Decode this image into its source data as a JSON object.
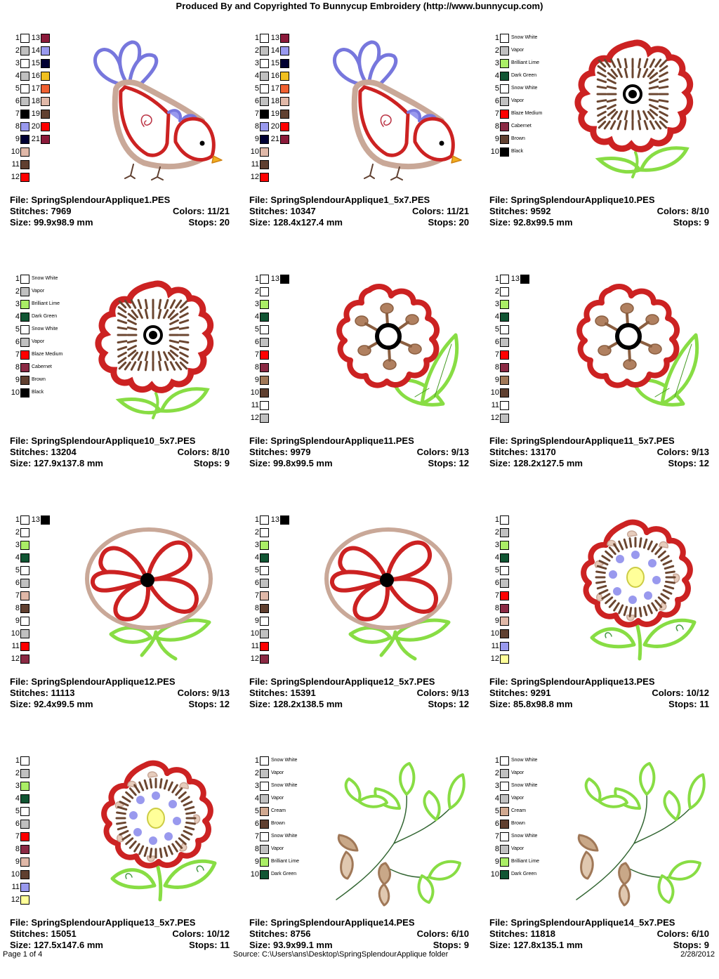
{
  "header": {
    "title": "Produced By and Copyrighted To Bunnycup Embroidery (http://www.bunnycup.com)"
  },
  "labels": {
    "file": "File:",
    "stitches": "Stitches:",
    "colors": "Colors:",
    "size": "Size:",
    "stops": "Stops:"
  },
  "designs": [
    {
      "file": "SpringSplendourApplique1.PES",
      "stitches": "7969",
      "colors": "11/21",
      "size": "99.9x98.9 mm",
      "stops": "20",
      "art": "bird",
      "swatches": [
        {
          "n": "1",
          "c": "#ffffff"
        },
        {
          "n": "2",
          "c": "#c0c0c0"
        },
        {
          "n": "3",
          "c": "#ffffff"
        },
        {
          "n": "4",
          "c": "#c0c0c0"
        },
        {
          "n": "5",
          "c": "#ffffff"
        },
        {
          "n": "6",
          "c": "#c0c0c0"
        },
        {
          "n": "7",
          "c": "#000000"
        },
        {
          "n": "8",
          "c": "#9999ee"
        },
        {
          "n": "9",
          "c": "#000033"
        },
        {
          "n": "10",
          "c": "#e0b8a8"
        },
        {
          "n": "11",
          "c": "#604030"
        },
        {
          "n": "12",
          "c": "#ff0000"
        },
        {
          "n": "13",
          "c": "#8b1a3a"
        },
        {
          "n": "14",
          "c": "#9999ee"
        },
        {
          "n": "15",
          "c": "#000033"
        },
        {
          "n": "16",
          "c": "#f0c020"
        },
        {
          "n": "17",
          "c": "#f06030"
        },
        {
          "n": "18",
          "c": "#e0b8a8"
        },
        {
          "n": "19",
          "c": "#604030"
        },
        {
          "n": "20",
          "c": "#ff0000"
        },
        {
          "n": "21",
          "c": "#8b1a3a"
        }
      ]
    },
    {
      "file": "SpringSplendourApplique1_5x7.PES",
      "stitches": "10347",
      "colors": "11/21",
      "size": "128.4x127.4 mm",
      "stops": "20",
      "art": "bird",
      "swatches": [
        {
          "n": "1",
          "c": "#ffffff"
        },
        {
          "n": "2",
          "c": "#c0c0c0"
        },
        {
          "n": "3",
          "c": "#ffffff"
        },
        {
          "n": "4",
          "c": "#c0c0c0"
        },
        {
          "n": "5",
          "c": "#ffffff"
        },
        {
          "n": "6",
          "c": "#c0c0c0"
        },
        {
          "n": "7",
          "c": "#000000"
        },
        {
          "n": "8",
          "c": "#9999ee"
        },
        {
          "n": "9",
          "c": "#000033"
        },
        {
          "n": "10",
          "c": "#e0b8a8"
        },
        {
          "n": "11",
          "c": "#604030"
        },
        {
          "n": "12",
          "c": "#ff0000"
        },
        {
          "n": "13",
          "c": "#8b1a3a"
        },
        {
          "n": "14",
          "c": "#9999ee"
        },
        {
          "n": "15",
          "c": "#000033"
        },
        {
          "n": "16",
          "c": "#f0c020"
        },
        {
          "n": "17",
          "c": "#f06030"
        },
        {
          "n": "18",
          "c": "#e0b8a8"
        },
        {
          "n": "19",
          "c": "#604030"
        },
        {
          "n": "20",
          "c": "#ff0000"
        },
        {
          "n": "21",
          "c": "#8b1a3a"
        }
      ]
    },
    {
      "file": "SpringSplendourApplique10.PES",
      "stitches": "9592",
      "colors": "8/10",
      "size": "92.8x99.5 mm",
      "stops": "9",
      "art": "squareflower",
      "swatches": [
        {
          "n": "1",
          "c": "#ffffff",
          "name": "Snow White"
        },
        {
          "n": "2",
          "c": "#c0c0c0",
          "name": "Vapor"
        },
        {
          "n": "3",
          "c": "#aaee66",
          "name": "Brilliant Lime"
        },
        {
          "n": "4",
          "c": "#115533",
          "name": "Dark Green"
        },
        {
          "n": "5",
          "c": "#ffffff",
          "name": "Snow White"
        },
        {
          "n": "6",
          "c": "#c0c0c0",
          "name": "Vapor"
        },
        {
          "n": "7",
          "c": "#ff0000",
          "name": "Blaze Medium"
        },
        {
          "n": "8",
          "c": "#8b2a44",
          "name": "Cabernet"
        },
        {
          "n": "9",
          "c": "#604030",
          "name": "Brown"
        },
        {
          "n": "10",
          "c": "#000000",
          "name": "Black"
        }
      ]
    },
    {
      "file": "SpringSplendourApplique10_5x7.PES",
      "stitches": "13204",
      "colors": "8/10",
      "size": "127.9x137.8 mm",
      "stops": "9",
      "art": "squareflower",
      "swatches": [
        {
          "n": "1",
          "c": "#ffffff",
          "name": "Snow White"
        },
        {
          "n": "2",
          "c": "#c0c0c0",
          "name": "Vapor"
        },
        {
          "n": "3",
          "c": "#aaee66",
          "name": "Brilliant Lime"
        },
        {
          "n": "4",
          "c": "#115533",
          "name": "Dark Green"
        },
        {
          "n": "5",
          "c": "#ffffff",
          "name": "Snow White"
        },
        {
          "n": "6",
          "c": "#c0c0c0",
          "name": "Vapor"
        },
        {
          "n": "7",
          "c": "#ff0000",
          "name": "Blaze Medium"
        },
        {
          "n": "8",
          "c": "#8b2a44",
          "name": "Cabernet"
        },
        {
          "n": "9",
          "c": "#604030",
          "name": "Brown"
        },
        {
          "n": "10",
          "c": "#000000",
          "name": "Black"
        }
      ]
    },
    {
      "file": "SpringSplendourApplique11.PES",
      "stitches": "9979",
      "colors": "9/13",
      "size": "99.8x99.5 mm",
      "stops": "12",
      "art": "ringflower",
      "swatches": [
        {
          "n": "1",
          "c": "#ffffff"
        },
        {
          "n": "2",
          "c": "#ffffff"
        },
        {
          "n": "3",
          "c": "#aaee66"
        },
        {
          "n": "4",
          "c": "#115533"
        },
        {
          "n": "5",
          "c": "#ffffff"
        },
        {
          "n": "6",
          "c": "#c0c0c0"
        },
        {
          "n": "7",
          "c": "#ff0000"
        },
        {
          "n": "8",
          "c": "#8b2a44"
        },
        {
          "n": "9",
          "c": "#a07858"
        },
        {
          "n": "10",
          "c": "#604030"
        },
        {
          "n": "11",
          "c": "#ffffff"
        },
        {
          "n": "12",
          "c": "#c0c0c0"
        },
        {
          "n": "13",
          "c": "#000000"
        }
      ]
    },
    {
      "file": "SpringSplendourApplique11_5x7.PES",
      "stitches": "13170",
      "colors": "9/13",
      "size": "128.2x127.5 mm",
      "stops": "12",
      "art": "ringflower",
      "swatches": [
        {
          "n": "1",
          "c": "#ffffff"
        },
        {
          "n": "2",
          "c": "#ffffff"
        },
        {
          "n": "3",
          "c": "#aaee66"
        },
        {
          "n": "4",
          "c": "#115533"
        },
        {
          "n": "5",
          "c": "#ffffff"
        },
        {
          "n": "6",
          "c": "#c0c0c0"
        },
        {
          "n": "7",
          "c": "#ff0000"
        },
        {
          "n": "8",
          "c": "#8b2a44"
        },
        {
          "n": "9",
          "c": "#a07858"
        },
        {
          "n": "10",
          "c": "#604030"
        },
        {
          "n": "11",
          "c": "#ffffff"
        },
        {
          "n": "12",
          "c": "#c0c0c0"
        },
        {
          "n": "13",
          "c": "#000000"
        }
      ]
    },
    {
      "file": "SpringSplendourApplique12.PES",
      "stitches": "11113",
      "colors": "9/13",
      "size": "92.4x99.5 mm",
      "stops": "12",
      "art": "heartflower",
      "swatches": [
        {
          "n": "1",
          "c": "#ffffff"
        },
        {
          "n": "2",
          "c": "#ffffff"
        },
        {
          "n": "3",
          "c": "#aaee66"
        },
        {
          "n": "4",
          "c": "#115533"
        },
        {
          "n": "5",
          "c": "#ffffff"
        },
        {
          "n": "6",
          "c": "#c0c0c0"
        },
        {
          "n": "7",
          "c": "#e0b8a8"
        },
        {
          "n": "8",
          "c": "#604030"
        },
        {
          "n": "9",
          "c": "#ffffff"
        },
        {
          "n": "10",
          "c": "#c0c0c0"
        },
        {
          "n": "11",
          "c": "#ff0000"
        },
        {
          "n": "12",
          "c": "#8b2a44"
        },
        {
          "n": "13",
          "c": "#000000"
        }
      ]
    },
    {
      "file": "SpringSplendourApplique12_5x7.PES",
      "stitches": "15391",
      "colors": "9/13",
      "size": "128.2x138.5 mm",
      "stops": "12",
      "art": "heartflower",
      "swatches": [
        {
          "n": "1",
          "c": "#ffffff"
        },
        {
          "n": "2",
          "c": "#ffffff"
        },
        {
          "n": "3",
          "c": "#aaee66"
        },
        {
          "n": "4",
          "c": "#115533"
        },
        {
          "n": "5",
          "c": "#ffffff"
        },
        {
          "n": "6",
          "c": "#c0c0c0"
        },
        {
          "n": "7",
          "c": "#e0b8a8"
        },
        {
          "n": "8",
          "c": "#604030"
        },
        {
          "n": "9",
          "c": "#ffffff"
        },
        {
          "n": "10",
          "c": "#c0c0c0"
        },
        {
          "n": "11",
          "c": "#ff0000"
        },
        {
          "n": "12",
          "c": "#8b2a44"
        },
        {
          "n": "13",
          "c": "#000000"
        }
      ]
    },
    {
      "file": "SpringSplendourApplique13.PES",
      "stitches": "9291",
      "colors": "10/12",
      "size": "85.8x98.8 mm",
      "stops": "11",
      "art": "dotflower",
      "swatches": [
        {
          "n": "1",
          "c": "#ffffff"
        },
        {
          "n": "2",
          "c": "#c0c0c0"
        },
        {
          "n": "3",
          "c": "#aaee66"
        },
        {
          "n": "4",
          "c": "#115533"
        },
        {
          "n": "5",
          "c": "#ffffff"
        },
        {
          "n": "6",
          "c": "#c0c0c0"
        },
        {
          "n": "7",
          "c": "#ff0000"
        },
        {
          "n": "8",
          "c": "#8b2a44"
        },
        {
          "n": "9",
          "c": "#e0b8a8"
        },
        {
          "n": "10",
          "c": "#604030"
        },
        {
          "n": "11",
          "c": "#9999ee"
        },
        {
          "n": "12",
          "c": "#ffff99"
        }
      ]
    },
    {
      "file": "SpringSplendourApplique13_5x7.PES",
      "stitches": "15051",
      "colors": "10/12",
      "size": "127.5x147.6 mm",
      "stops": "11",
      "art": "dotflower",
      "swatches": [
        {
          "n": "1",
          "c": "#ffffff"
        },
        {
          "n": "2",
          "c": "#c0c0c0"
        },
        {
          "n": "3",
          "c": "#aaee66"
        },
        {
          "n": "4",
          "c": "#115533"
        },
        {
          "n": "5",
          "c": "#ffffff"
        },
        {
          "n": "6",
          "c": "#c0c0c0"
        },
        {
          "n": "7",
          "c": "#ff0000"
        },
        {
          "n": "8",
          "c": "#8b2a44"
        },
        {
          "n": "9",
          "c": "#e0b8a8"
        },
        {
          "n": "10",
          "c": "#604030"
        },
        {
          "n": "11",
          "c": "#9999ee"
        },
        {
          "n": "12",
          "c": "#ffff99"
        }
      ]
    },
    {
      "file": "SpringSplendourApplique14.PES",
      "stitches": "8756",
      "colors": "6/10",
      "size": "93.9x99.1 mm",
      "stops": "9",
      "art": "branch",
      "swatches": [
        {
          "n": "1",
          "c": "#ffffff",
          "name": "Snow White"
        },
        {
          "n": "2",
          "c": "#c0c0c0",
          "name": "Vapor"
        },
        {
          "n": "3",
          "c": "#ffffff",
          "name": "Snow White"
        },
        {
          "n": "4",
          "c": "#c0c0c0",
          "name": "Vapor"
        },
        {
          "n": "5",
          "c": "#d0a890",
          "name": "Cream"
        },
        {
          "n": "6",
          "c": "#604030",
          "name": "Brown"
        },
        {
          "n": "7",
          "c": "#ffffff",
          "name": "Snow White"
        },
        {
          "n": "8",
          "c": "#c0c0c0",
          "name": "Vapor"
        },
        {
          "n": "9",
          "c": "#aaee66",
          "name": "Brilliant Lime"
        },
        {
          "n": "10",
          "c": "#115533",
          "name": "Dark Green"
        }
      ]
    },
    {
      "file": "SpringSplendourApplique14_5x7.PES",
      "stitches": "11818",
      "colors": "6/10",
      "size": "127.8x135.1 mm",
      "stops": "9",
      "art": "branch",
      "swatches": [
        {
          "n": "1",
          "c": "#ffffff",
          "name": "Snow White"
        },
        {
          "n": "2",
          "c": "#c0c0c0",
          "name": "Vapor"
        },
        {
          "n": "3",
          "c": "#ffffff",
          "name": "Snow White"
        },
        {
          "n": "4",
          "c": "#c0c0c0",
          "name": "Vapor"
        },
        {
          "n": "5",
          "c": "#d0a890",
          "name": "Cream"
        },
        {
          "n": "6",
          "c": "#604030",
          "name": "Brown"
        },
        {
          "n": "7",
          "c": "#ffffff",
          "name": "Snow White"
        },
        {
          "n": "8",
          "c": "#c0c0c0",
          "name": "Vapor"
        },
        {
          "n": "9",
          "c": "#aaee66",
          "name": "Brilliant Lime"
        },
        {
          "n": "10",
          "c": "#115533",
          "name": "Dark Green"
        }
      ]
    }
  ],
  "footer": {
    "page": "Page 1 of 4",
    "source": "Source: C:\\Users\\ans\\Desktop\\SpringSplendourApplique folder",
    "date": "2/28/2012"
  }
}
